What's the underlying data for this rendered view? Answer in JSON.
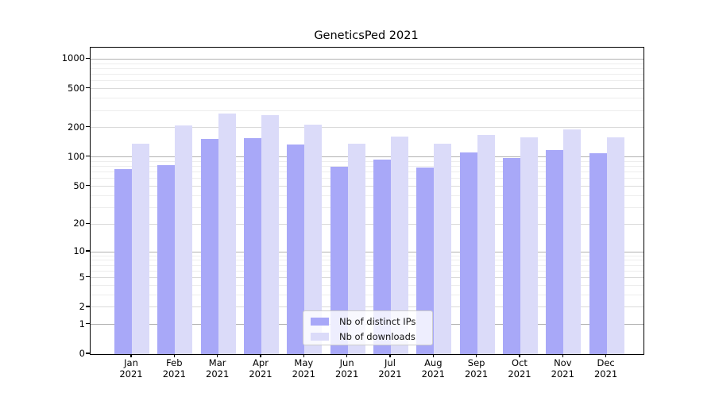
{
  "title": "GeneticsPed 2021",
  "colors": {
    "distinct_ips": "#a8a8f8",
    "downloads": "#dbdbf9",
    "grid_decade": "#b2b2b2",
    "grid_mid": "#dadada",
    "grid_minor": "#ededed",
    "axis_line": "#000000",
    "legend_border": "#cccccc",
    "text": "#000000"
  },
  "legend": {
    "items": [
      {
        "label": "Nb of distinct IPs",
        "series": "distinct_ips"
      },
      {
        "label": "Nb of downloads",
        "series": "downloads"
      }
    ]
  },
  "y_axis": {
    "tick_labels": [
      "1000",
      "500",
      "200",
      "100",
      "50",
      "20",
      "10",
      "5",
      "2",
      "1",
      "0"
    ]
  },
  "x_axis": {
    "year": "2021",
    "months": [
      "Jan",
      "Feb",
      "Mar",
      "Apr",
      "May",
      "Jun",
      "Jul",
      "Aug",
      "Sep",
      "Oct",
      "Nov",
      "Dec"
    ]
  },
  "chart_data": {
    "type": "bar",
    "title": "GeneticsPed 2021",
    "categories": [
      "Jan 2021",
      "Feb 2021",
      "Mar 2021",
      "Apr 2021",
      "May 2021",
      "Jun 2021",
      "Jul 2021",
      "Aug 2021",
      "Sep 2021",
      "Oct 2021",
      "Nov 2021",
      "Dec 2021"
    ],
    "series": [
      {
        "name": "Nb of distinct IPs",
        "values": [
          75,
          82,
          154,
          157,
          134,
          79,
          95,
          78,
          111,
          97,
          119,
          110
        ]
      },
      {
        "name": "Nb of downloads",
        "values": [
          138,
          210,
          277,
          270,
          214,
          136,
          161,
          137,
          167,
          159,
          191,
          160
        ]
      }
    ],
    "xlabel": "",
    "ylabel": "",
    "y_scale": "symlog_ln(1+v)",
    "y_ticks": [
      0,
      1,
      2,
      5,
      10,
      20,
      50,
      100,
      200,
      500,
      1000
    ],
    "y_minor_gridlines": [
      3,
      4,
      6,
      7,
      8,
      9,
      30,
      40,
      60,
      70,
      80,
      90,
      300,
      400,
      600,
      700,
      800,
      900
    ],
    "y_decade_gridlines": [
      1,
      10,
      100,
      1000
    ],
    "ylim": [
      0,
      1307
    ],
    "grid": true,
    "legend_position": "inside bottom-center"
  }
}
